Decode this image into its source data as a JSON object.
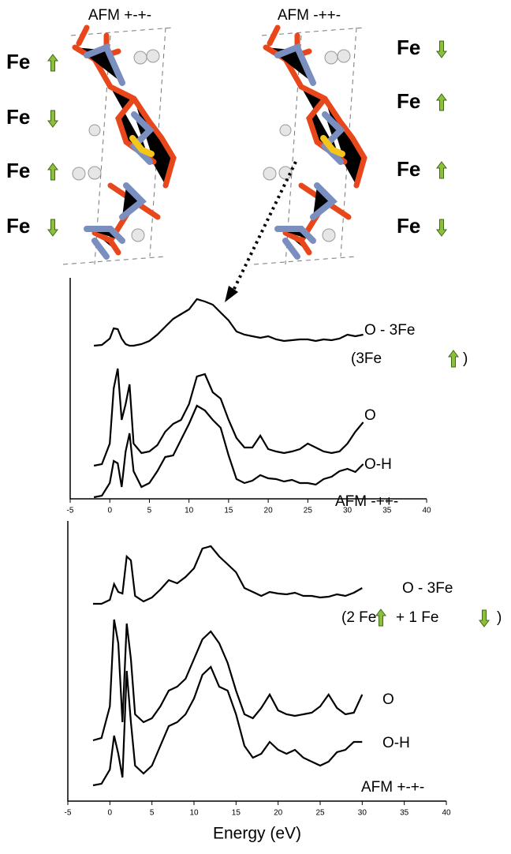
{
  "structures": {
    "left_title": "AFM +-+-",
    "right_title": "AFM -++-",
    "left_labels": [
      "Fe",
      "Fe",
      "Fe",
      "Fe"
    ],
    "right_labels": [
      "Fe",
      "Fe",
      "Fe",
      "Fe"
    ]
  },
  "chart_data": [
    {
      "type": "line",
      "xlim": [
        -5,
        40
      ],
      "xticks": [
        -5,
        0,
        5,
        10,
        15,
        20,
        25,
        30,
        35,
        40
      ],
      "ylim": [
        0,
        28
      ],
      "x": [
        -2,
        -1,
        0,
        0.5,
        1,
        1.5,
        2,
        2.5,
        3,
        4,
        5,
        6,
        7,
        8,
        9,
        10,
        11,
        12,
        13,
        14,
        15,
        16,
        17,
        18,
        19,
        20,
        21,
        22,
        23,
        24,
        25,
        26,
        27,
        28,
        29,
        30,
        31,
        32
      ],
      "series": [
        {
          "name": "O - 3Fe",
          "color": "#000000",
          "values": [
            19.4,
            19.5,
            20.3,
            21.6,
            21.5,
            20.3,
            19.6,
            19.4,
            19.4,
            19.6,
            20.0,
            20.8,
            21.8,
            22.8,
            23.4,
            24.0,
            25.3,
            25.0,
            24.6,
            23.6,
            22.6,
            21.2,
            20.8,
            20.6,
            20.4,
            20.6,
            20.2,
            20.0,
            20.1,
            20.2,
            20.2,
            20.0,
            20.2,
            20.1,
            20.3,
            20.8,
            20.6,
            20.8
          ]
        },
        {
          "name": "O",
          "color": "#000000",
          "values": [
            4.2,
            4.4,
            7,
            14,
            16.5,
            10,
            12,
            14.5,
            7,
            5.8,
            6,
            6.8,
            8.5,
            9.5,
            10,
            12,
            15.5,
            15.8,
            13.5,
            12.7,
            10,
            7.7,
            6.5,
            6.5,
            8,
            6.3,
            6.0,
            5.8,
            6.0,
            6.3,
            7.0,
            6.5,
            6.0,
            5.8,
            6.0,
            7.0,
            8.5,
            9.7
          ]
        },
        {
          "name": "O-H",
          "color": "#000000",
          "values": [
            0.2,
            0.4,
            2.0,
            4.8,
            4.5,
            1.5,
            6,
            8.3,
            3.5,
            1.5,
            2.0,
            3.5,
            5.3,
            5.5,
            7.5,
            9.5,
            11.8,
            11.2,
            10.0,
            9.0,
            5.5,
            2.5,
            2.0,
            2.3,
            3.0,
            2.6,
            2.5,
            2.2,
            2.4,
            2.0,
            2.0,
            1.8,
            2.5,
            2.8,
            3.5,
            3.8,
            3.4,
            4.4
          ]
        }
      ],
      "annotations": [
        "(3Fe",
        ")",
        "AFM -++-"
      ]
    },
    {
      "type": "line",
      "xlim": [
        -5,
        40
      ],
      "xticks": [
        -5,
        0,
        5,
        10,
        15,
        20,
        25,
        30,
        35,
        40
      ],
      "ylim": [
        0,
        35.5
      ],
      "xlabel": "Energy (eV)",
      "x": [
        -2,
        -1,
        0,
        0.5,
        1,
        1.5,
        2,
        2.5,
        3,
        4,
        5,
        6,
        7,
        8,
        9,
        10,
        11,
        12,
        13,
        14,
        15,
        16,
        17,
        18,
        19,
        20,
        21,
        22,
        23,
        24,
        25,
        26,
        27,
        28,
        29,
        30
      ],
      "series": [
        {
          "name": "O - 3Fe",
          "color": "#000000",
          "values": [
            25,
            25,
            25.5,
            27.5,
            26.5,
            26.3,
            31.0,
            30.5,
            26,
            25.3,
            25.8,
            26.8,
            28,
            27.6,
            28.4,
            29.5,
            32.0,
            32.3,
            31.0,
            30.0,
            29.0,
            27.0,
            26.5,
            26.0,
            26.5,
            26.3,
            26.2,
            26.4,
            26.0,
            26.0,
            25.8,
            25.9,
            26.2,
            26.0,
            26.4,
            27.0
          ]
        },
        {
          "name": "O",
          "color": "#000000",
          "values": [
            7.7,
            8.0,
            12,
            23,
            20,
            10,
            22.5,
            18,
            11,
            10,
            10.5,
            12,
            14,
            14.5,
            15.5,
            18,
            20.5,
            21.5,
            20,
            17.5,
            14,
            11,
            10.5,
            11.8,
            13.5,
            11.5,
            11.0,
            10.8,
            11.0,
            11.2,
            12.0,
            13.5,
            11.8,
            11.0,
            11.2,
            13.5
          ]
        },
        {
          "name": "O-H",
          "color": "#000000",
          "values": [
            2,
            2.2,
            4,
            8.3,
            6,
            3,
            16.5,
            10,
            4.5,
            3.5,
            4.5,
            7,
            9.5,
            10,
            11,
            13,
            16,
            17,
            14.5,
            14,
            11,
            7,
            5.5,
            6,
            7.5,
            6.5,
            6.0,
            6.5,
            5.5,
            5,
            4.5,
            5,
            6.2,
            6.5,
            7.5,
            7.5
          ]
        }
      ],
      "annotations": [
        "(2 Fe",
        "+ 1 Fe",
        ")",
        "AFM +-+-"
      ]
    }
  ]
}
